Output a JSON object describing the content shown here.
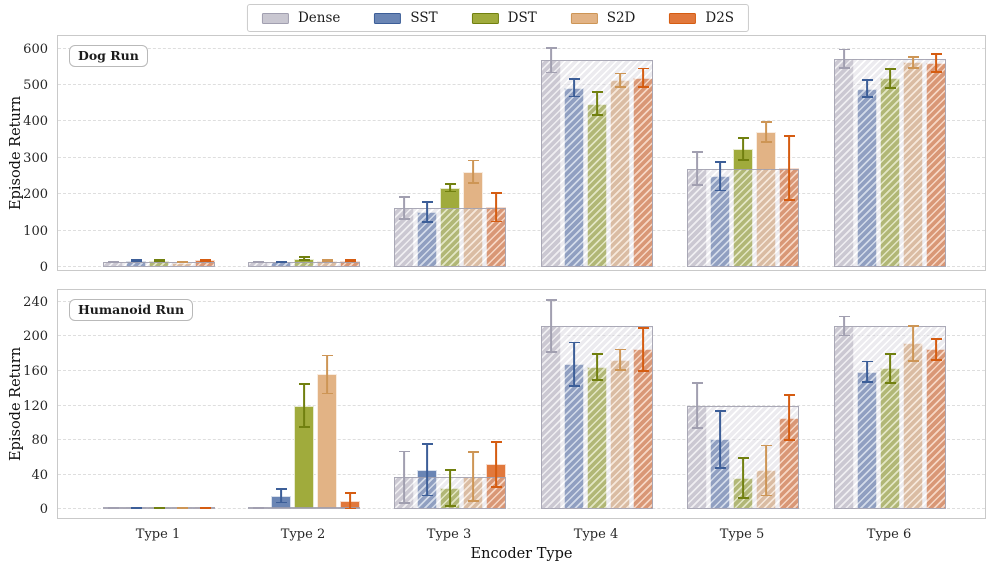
{
  "figure_type": "grouped bar chart, two stacked subplots sharing x axis",
  "colors": {
    "background": "#ffffff",
    "frame": "#c9c9c9",
    "grid": "#dedede",
    "text": "#1c1c1c"
  },
  "legend": {
    "items": [
      {
        "label": "Dense",
        "fill": "#c9c7d1",
        "edge": "#a19fb0"
      },
      {
        "label": "SST",
        "fill": "#6a85b4",
        "edge": "#3c5e98"
      },
      {
        "label": "DST",
        "fill": "#a0ab3c",
        "edge": "#71800f"
      },
      {
        "label": "S2D",
        "fill": "#e2b385",
        "edge": "#cd9555"
      },
      {
        "label": "D2S",
        "fill": "#e1783c",
        "edge": "#d55c11"
      }
    ]
  },
  "chart_data": {
    "type": "bar",
    "categories": [
      "Type 1",
      "Type 2",
      "Type 3",
      "Type 4",
      "Type 5",
      "Type 6"
    ],
    "xlabel": "Encoder Type",
    "ylabel": "Episode Return",
    "grid": "horizontal dashed",
    "legend_position": "top center, outside axes",
    "series_names": [
      "Dense",
      "SST",
      "DST",
      "S2D",
      "D2S"
    ],
    "dense_reference_band": "hatched gray band over each group at the Dense bar height",
    "subplots": [
      {
        "title": "Dog Run",
        "ylim": [
          -8,
          640
        ],
        "yticks": [
          0,
          100,
          200,
          300,
          400,
          500,
          600
        ],
        "series": [
          {
            "name": "Dense",
            "values": [
              14,
              15,
              162,
              568,
              270,
              572
            ],
            "errors": [
              4,
              3,
              32,
              36,
              48,
              28
            ]
          },
          {
            "name": "SST",
            "values": [
              18,
              14,
              151,
              492,
              250,
              490
            ],
            "errors": [
              4,
              4,
              30,
              26,
              42,
              26
            ]
          },
          {
            "name": "DST",
            "values": [
              18,
              23,
              218,
              449,
              325,
              518
            ],
            "errors": [
              3,
              7,
              13,
              34,
              33,
              29
            ]
          },
          {
            "name": "S2D",
            "values": [
              12,
              18,
              262,
              513,
              370,
              562
            ],
            "errors": [
              2,
              3,
              33,
              21,
              30,
              18
            ]
          },
          {
            "name": "D2S",
            "values": [
              19,
              18,
              165,
              520,
              272,
              560
            ],
            "errors": [
              4,
              3,
              42,
              28,
              90,
              27
            ]
          }
        ]
      },
      {
        "title": "Humanoid Run",
        "ylim": [
          -10,
          256
        ],
        "yticks": [
          0,
          40,
          80,
          120,
          160,
          200,
          240
        ],
        "series": [
          {
            "name": "Dense",
            "values": [
              2,
              2,
              37,
              212,
              120,
              212
            ],
            "errors": [
              1,
              1,
              31,
              31,
              27,
              12
            ]
          },
          {
            "name": "SST",
            "values": [
              2,
              16,
              46,
              168,
              81,
              159
            ],
            "errors": [
              1,
              9,
              31,
              26,
              34,
              13
            ]
          },
          {
            "name": "DST",
            "values": [
              2,
              120,
              25,
              165,
              36,
              163
            ],
            "errors": [
              1,
              26,
              22,
              16,
              24,
              18
            ]
          },
          {
            "name": "S2D",
            "values": [
              2,
              156,
              38,
              173,
              45,
              192
            ],
            "errors": [
              1,
              23,
              29,
              13,
              30,
              21
            ]
          },
          {
            "name": "D2S",
            "values": [
              2,
              10,
              52,
              185,
              106,
              185
            ],
            "errors": [
              1,
              10,
              27,
              26,
              27,
              13
            ]
          }
        ]
      }
    ]
  }
}
